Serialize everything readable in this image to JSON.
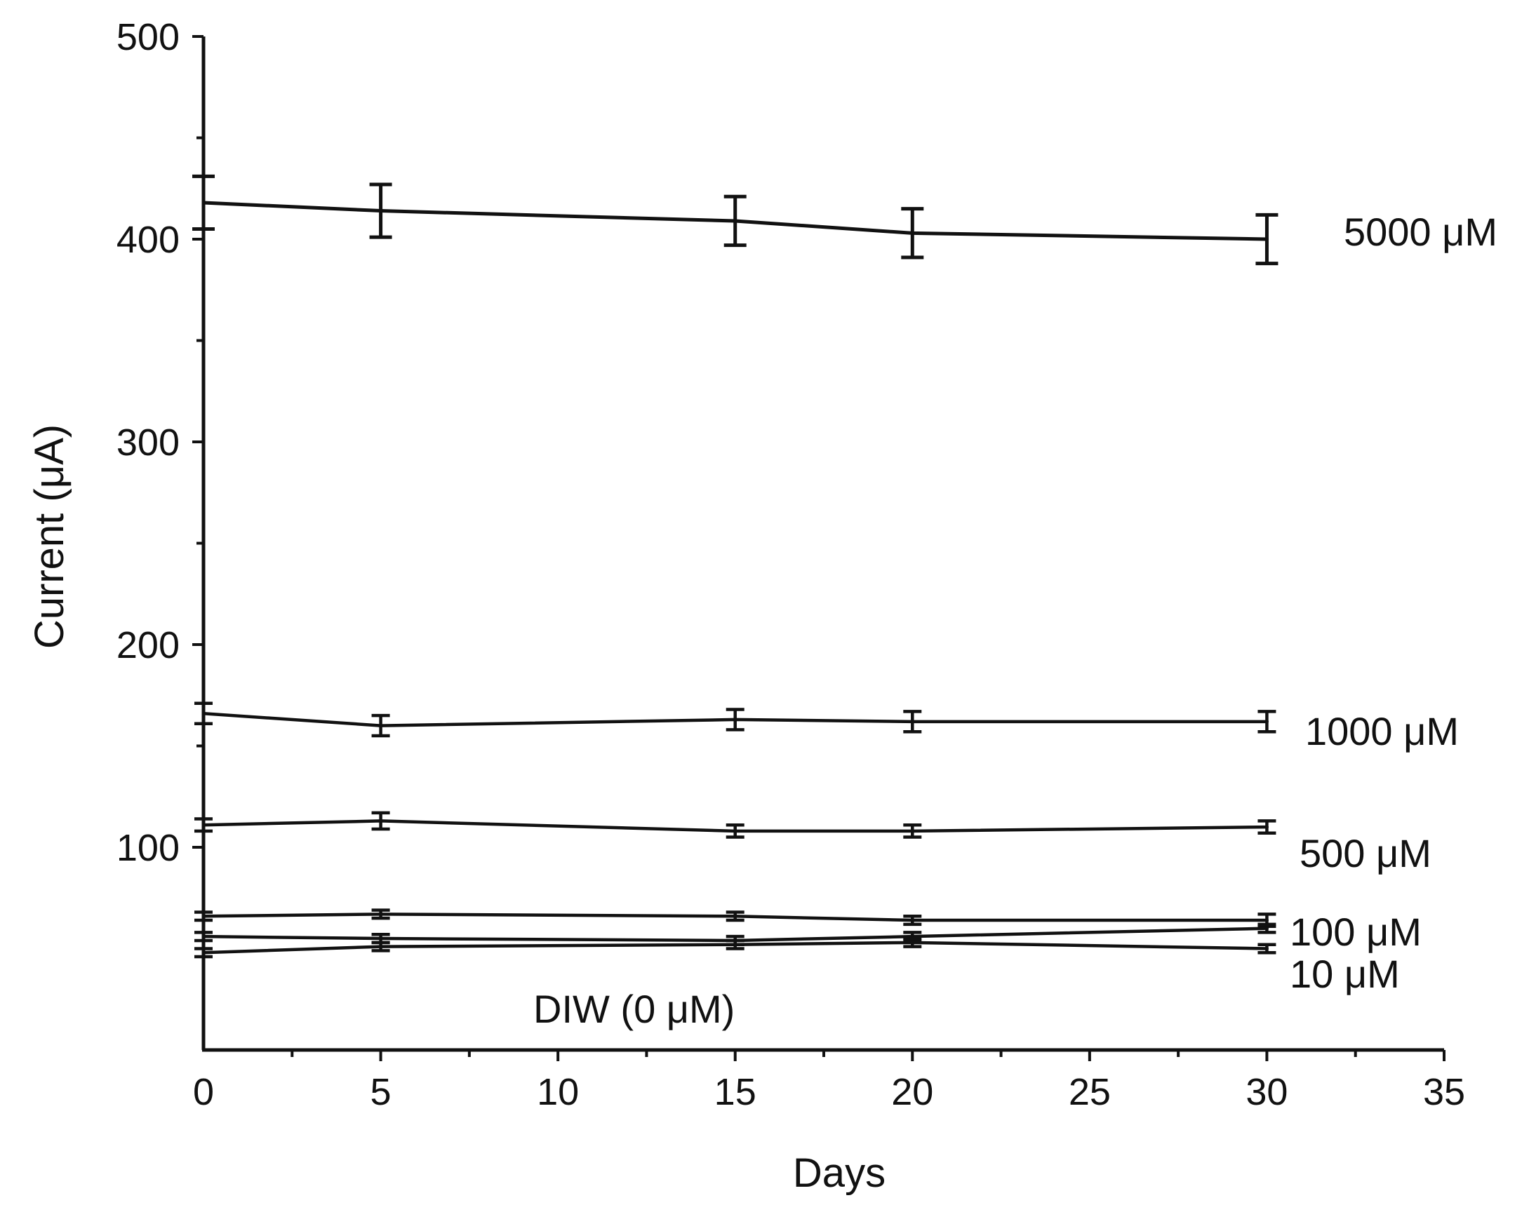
{
  "chart_data": {
    "type": "line",
    "title": "",
    "xlabel": "Days",
    "ylabel": "Current (μA)",
    "xlim": [
      0,
      35
    ],
    "ylim": [
      0,
      500
    ],
    "xticks": [
      0,
      5,
      10,
      15,
      20,
      25,
      30,
      35
    ],
    "yticks": [
      100,
      200,
      300,
      400,
      500
    ],
    "x": [
      0,
      5,
      15,
      20,
      30
    ],
    "series": [
      {
        "name": "5000 μM",
        "values": [
          418,
          414,
          409,
          403,
          400
        ],
        "errors": [
          13,
          13,
          12,
          12,
          12
        ]
      },
      {
        "name": "1000 μM",
        "values": [
          166,
          160,
          163,
          162,
          162
        ],
        "errors": [
          5,
          5,
          5,
          5,
          5
        ]
      },
      {
        "name": "500 μM",
        "values": [
          111,
          113,
          108,
          108,
          110
        ],
        "errors": [
          3,
          4,
          3,
          3,
          3
        ]
      },
      {
        "name": "100 μM",
        "values": [
          66,
          67,
          66,
          64,
          64
        ],
        "errors": [
          2,
          2,
          2,
          2,
          3
        ]
      },
      {
        "name": "10 μM",
        "values": [
          56,
          55,
          54,
          56,
          60
        ],
        "errors": [
          2,
          2,
          2,
          2,
          2
        ]
      },
      {
        "name": "DIW (0 μM)",
        "values": [
          48,
          51,
          52,
          53,
          50
        ],
        "errors": [
          2,
          2,
          2,
          2,
          2
        ]
      }
    ]
  }
}
